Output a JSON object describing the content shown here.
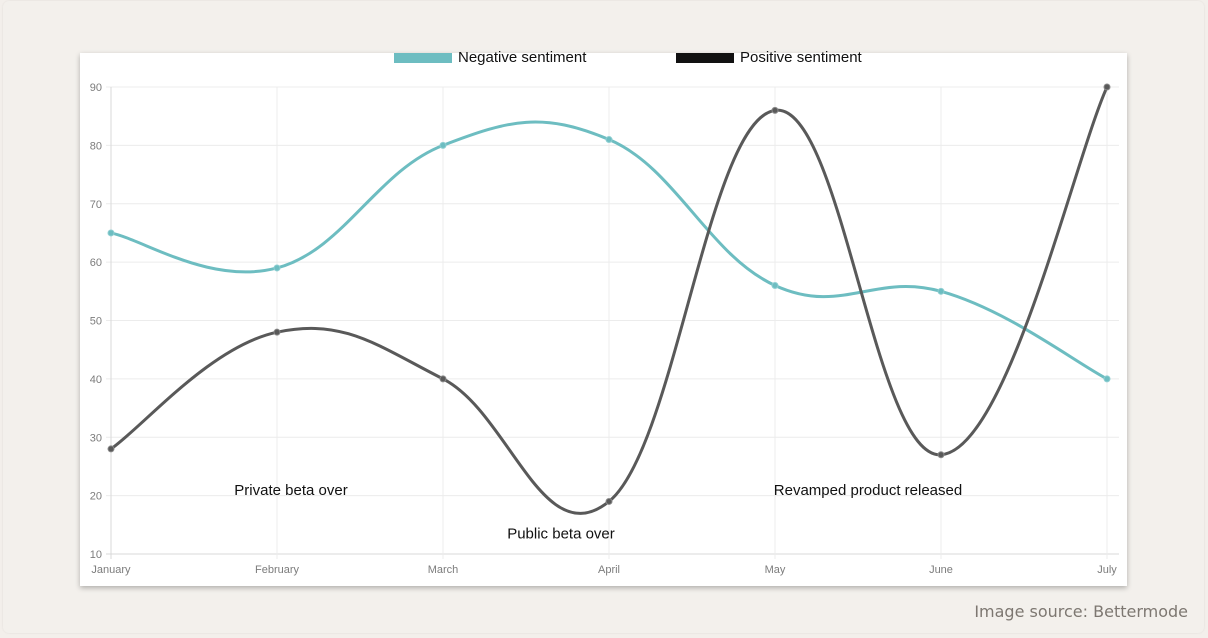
{
  "source_label": "Image source: Bettermode",
  "colors": {
    "negative": "#6dbdc1",
    "positive": "#595959",
    "legend_positive": "#111111"
  },
  "chart_data": {
    "type": "line",
    "categories": [
      "January",
      "February",
      "March",
      "April",
      "May",
      "June",
      "July"
    ],
    "series": [
      {
        "name": "Negative sentiment",
        "color": "#6dbdc1",
        "values": [
          65,
          59,
          80,
          81,
          56,
          55,
          40
        ]
      },
      {
        "name": "Positive sentiment",
        "color": "#595959",
        "values": [
          28,
          48,
          40,
          19,
          86,
          27,
          90
        ]
      }
    ],
    "ylim": [
      10,
      90
    ],
    "yticks": [
      10,
      20,
      30,
      40,
      50,
      60,
      70,
      80,
      90
    ],
    "grid": true,
    "legend_position": "top",
    "annotations": [
      {
        "text": "Private beta over",
        "x": "February",
        "y": 21
      },
      {
        "text": "Public beta over",
        "x": "April",
        "y": 13.5
      },
      {
        "text": "Revamped product released",
        "x": "June",
        "y": 21
      }
    ]
  }
}
